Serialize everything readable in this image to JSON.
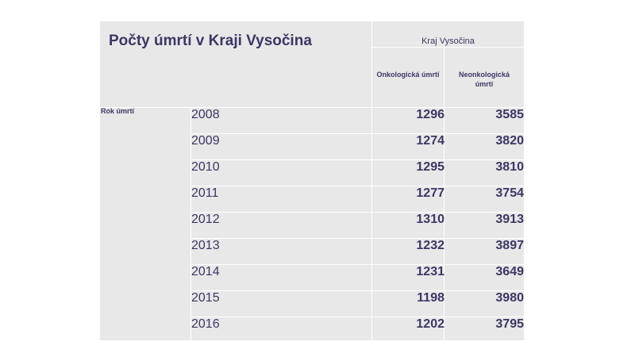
{
  "title": "Počty úmrtí v Kraji Vysočina",
  "region_header": "Kraj Vysočina",
  "columns": [
    "Onkologická úmrtí",
    "Neonkologická úmrtí"
  ],
  "row_group_label": "Rok úmrtí",
  "rows": [
    {
      "year": "2008",
      "onkologicka": "1296",
      "neonkologicka": "3585"
    },
    {
      "year": "2009",
      "onkologicka": "1274",
      "neonkologicka": "3820"
    },
    {
      "year": "2010",
      "onkologicka": "1295",
      "neonkologicka": "3810"
    },
    {
      "year": "2011",
      "onkologicka": "1277",
      "neonkologicka": "3754"
    },
    {
      "year": "2012",
      "onkologicka": "1310",
      "neonkologicka": "3913"
    },
    {
      "year": "2013",
      "onkologicka": "1232",
      "neonkologicka": "3897"
    },
    {
      "year": "2014",
      "onkologicka": "1231",
      "neonkologicka": "3649"
    },
    {
      "year": "2015",
      "onkologicka": "1198",
      "neonkologicka": "3980"
    },
    {
      "year": "2016",
      "onkologicka": "1202",
      "neonkologicka": "3795"
    }
  ],
  "colors": {
    "text": "#3b3764",
    "cell_bg": "#e8e8e8",
    "grid": "#ffffff"
  }
}
